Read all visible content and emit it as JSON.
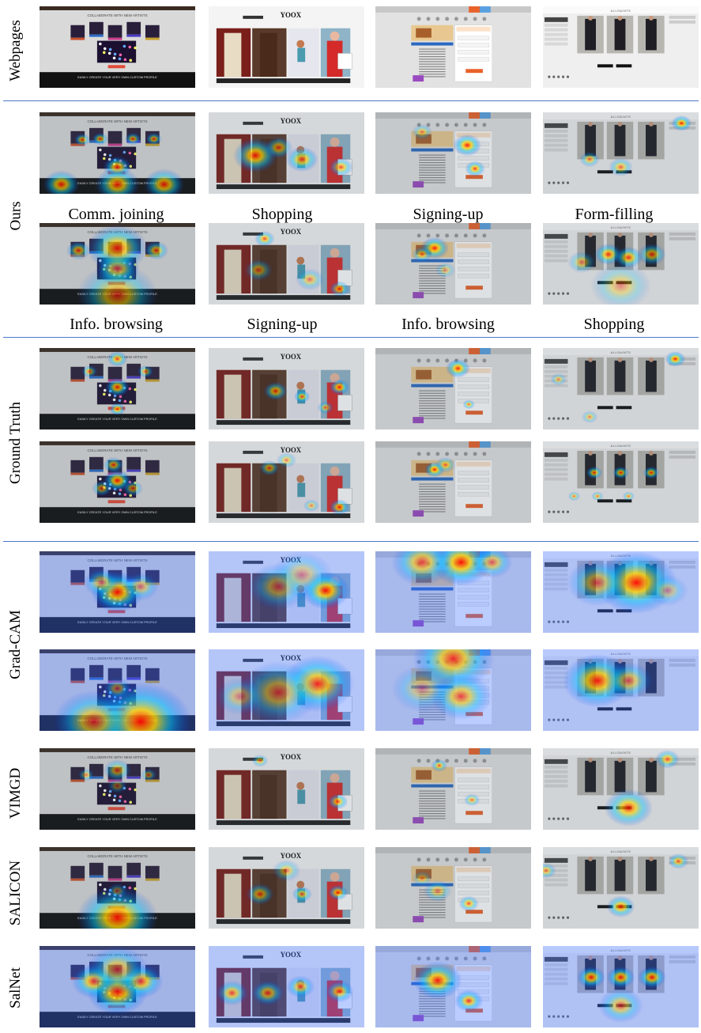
{
  "row_labels": {
    "webpages": "Webpages",
    "ours": "Ours",
    "ground_truth": "Ground Truth",
    "grad_cam": "Grad-CAM",
    "vimgd": "VIMGD",
    "salicon": "SALICON",
    "salnet": "SalNet"
  },
  "task_labels": {
    "row1": [
      "Comm. joining",
      "Shopping",
      "Signing-up",
      "Form-filling"
    ],
    "row2": [
      "Info. browsing",
      "Signing-up",
      "Info. browsing",
      "Shopping"
    ]
  },
  "page_text": {
    "collab_title": "COLLABORATE WITH NEW ARTISTS",
    "collab_banner": "EASILY CREATE YOUR VERY OWN CUSTOM PROFILE",
    "yoox_brand": "YOOX",
    "shop_brand": "ALLSAINTS"
  },
  "colors": {
    "separator": "#4a78c8",
    "heat_hot": "#ff0000",
    "heat_warm": "#ffd400",
    "heat_cool": "#00c8ff",
    "heat_tint": "#3c6cff"
  }
}
